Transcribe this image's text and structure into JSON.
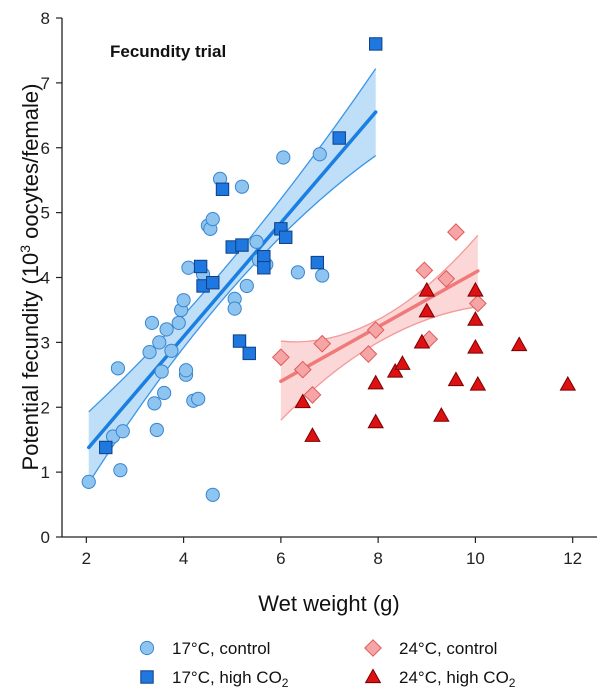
{
  "chart_data": {
    "type": "scatter",
    "title": "Fecundity trial",
    "xlabel": "Wet weight (g)",
    "ylabel_prefix": "Potential fecundity (10",
    "ylabel_sup": "3",
    "ylabel_suffix": " oocytes/female)",
    "xlim": [
      1.5,
      12.5
    ],
    "ylim": [
      0,
      8
    ],
    "xticks": [
      2,
      4,
      6,
      8,
      10,
      12
    ],
    "yticks": [
      0,
      1,
      2,
      3,
      4,
      5,
      6,
      7,
      8
    ],
    "grid": false,
    "legend_position": "bottom",
    "series": [
      {
        "name": "17°C, control",
        "marker": "circle",
        "color": "#8ec5f0",
        "stroke": "#3a86d0",
        "points": [
          [
            2.05,
            0.85
          ],
          [
            2.55,
            1.55
          ],
          [
            2.65,
            2.6
          ],
          [
            2.7,
            1.03
          ],
          [
            2.75,
            1.63
          ],
          [
            3.3,
            2.85
          ],
          [
            3.35,
            3.3
          ],
          [
            3.4,
            2.06
          ],
          [
            3.45,
            1.65
          ],
          [
            3.5,
            3.0
          ],
          [
            3.55,
            2.55
          ],
          [
            3.6,
            2.22
          ],
          [
            3.65,
            3.2
          ],
          [
            3.75,
            2.87
          ],
          [
            3.9,
            3.3
          ],
          [
            3.95,
            3.5
          ],
          [
            4.0,
            3.65
          ],
          [
            4.05,
            2.5
          ],
          [
            4.05,
            2.57
          ],
          [
            4.1,
            4.15
          ],
          [
            4.2,
            2.1
          ],
          [
            4.3,
            2.13
          ],
          [
            4.4,
            4.05
          ],
          [
            4.5,
            4.8
          ],
          [
            4.55,
            4.75
          ],
          [
            4.6,
            4.9
          ],
          [
            4.6,
            0.65
          ],
          [
            4.75,
            5.52
          ],
          [
            5.05,
            3.67
          ],
          [
            5.05,
            3.52
          ],
          [
            5.2,
            5.4
          ],
          [
            5.3,
            3.87
          ],
          [
            5.5,
            4.55
          ],
          [
            5.55,
            4.27
          ],
          [
            5.7,
            4.2
          ],
          [
            6.05,
            5.85
          ],
          [
            6.35,
            4.08
          ],
          [
            6.8,
            5.9
          ],
          [
            6.85,
            4.03
          ]
        ]
      },
      {
        "name": "17°C, high CO",
        "name_sub": "2",
        "marker": "square",
        "color": "#1f78e0",
        "stroke": "#0d3f86",
        "points": [
          [
            2.4,
            1.38
          ],
          [
            4.35,
            4.17
          ],
          [
            4.4,
            3.87
          ],
          [
            4.6,
            3.92
          ],
          [
            4.8,
            5.36
          ],
          [
            5.0,
            4.47
          ],
          [
            5.15,
            3.02
          ],
          [
            5.2,
            4.5
          ],
          [
            5.35,
            2.83
          ],
          [
            5.65,
            4.32
          ],
          [
            5.65,
            4.15
          ],
          [
            6.0,
            4.75
          ],
          [
            6.1,
            4.62
          ],
          [
            6.75,
            4.23
          ],
          [
            7.2,
            6.15
          ],
          [
            7.95,
            7.6
          ]
        ]
      },
      {
        "name": "24°C, control",
        "marker": "diamond",
        "color": "#f5a5a5",
        "stroke": "#e05a5a",
        "points": [
          [
            6.0,
            2.77
          ],
          [
            6.45,
            2.58
          ],
          [
            6.65,
            2.19
          ],
          [
            6.85,
            2.98
          ],
          [
            7.8,
            2.82
          ],
          [
            7.95,
            3.19
          ],
          [
            8.95,
            4.11
          ],
          [
            9.05,
            3.05
          ],
          [
            9.4,
            3.98
          ],
          [
            9.6,
            4.7
          ],
          [
            10.05,
            3.6
          ]
        ]
      },
      {
        "name": "24°C, high CO",
        "name_sub": "2",
        "marker": "triangle",
        "color": "#dd1111",
        "stroke": "#7a0000",
        "points": [
          [
            6.45,
            2.08
          ],
          [
            6.65,
            1.56
          ],
          [
            7.95,
            2.37
          ],
          [
            7.95,
            1.77
          ],
          [
            8.35,
            2.55
          ],
          [
            8.5,
            2.67
          ],
          [
            8.9,
            3.0
          ],
          [
            9.0,
            3.48
          ],
          [
            9.0,
            3.8
          ],
          [
            9.3,
            1.87
          ],
          [
            9.6,
            2.42
          ],
          [
            10.0,
            3.8
          ],
          [
            10.0,
            3.35
          ],
          [
            10.0,
            2.92
          ],
          [
            10.05,
            2.35
          ],
          [
            10.9,
            2.96
          ],
          [
            11.9,
            2.35
          ]
        ]
      }
    ],
    "fits": [
      {
        "series": "17°C",
        "x": [
          2.05,
          7.95
        ],
        "y": [
          1.38,
          6.55
        ],
        "ci_upper": [
          [
            2.05,
            1.93
          ],
          [
            5.0,
            4.28
          ],
          [
            7.95,
            7.22
          ]
        ],
        "ci_lower": [
          [
            2.05,
            0.83
          ],
          [
            5.0,
            3.83
          ],
          [
            7.95,
            5.88
          ]
        ],
        "line_color": "#1a7fe0",
        "band_color": "#a9d3f5",
        "band_edge": "#3a96e8"
      },
      {
        "series": "24°C",
        "x": [
          6.0,
          10.05
        ],
        "y": [
          2.4,
          4.1
        ],
        "ci_upper": [
          [
            6.0,
            3.02
          ],
          [
            8.0,
            3.35
          ],
          [
            10.05,
            4.65
          ]
        ],
        "ci_lower": [
          [
            6.0,
            1.8
          ],
          [
            8.0,
            3.0
          ],
          [
            10.05,
            3.55
          ]
        ],
        "line_color": "#f07a7a",
        "band_color": "#fbcaca",
        "band_edge": "#f39a9a"
      }
    ]
  }
}
